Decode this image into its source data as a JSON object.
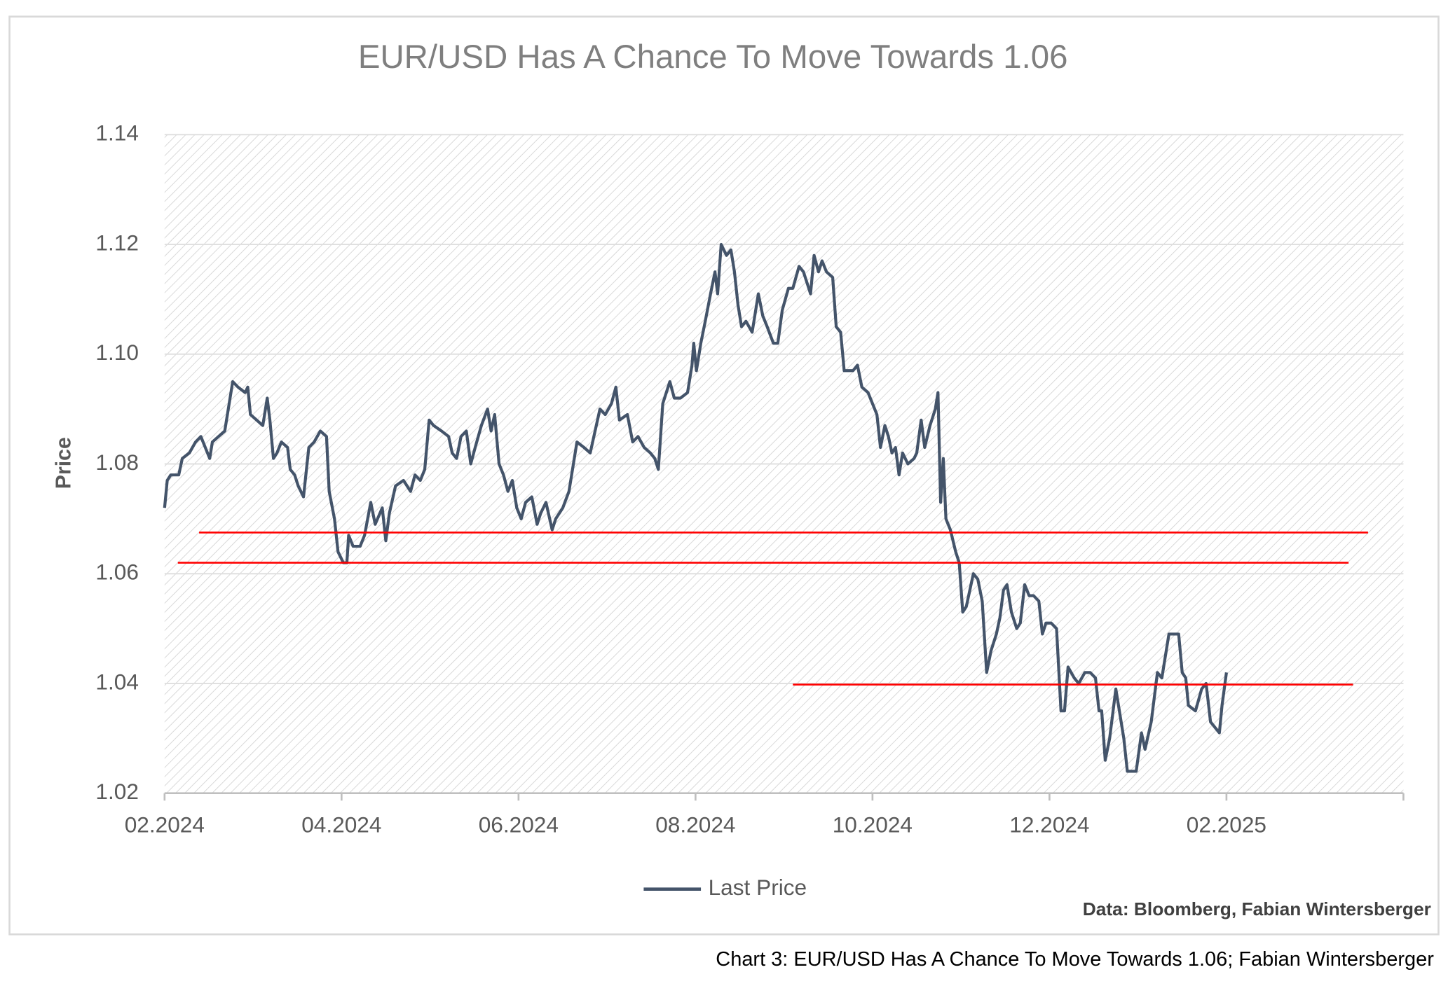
{
  "chart_data": {
    "type": "line",
    "title": "EUR/USD Has A Chance To Move Towards 1.06",
    "ylabel": "Price",
    "source": "Data: Bloomberg, Fabian Wintersberger",
    "caption": "Chart 3: EUR/USD Has A Chance To Move Towards 1.06; Fabian Wintersberger",
    "xlim": [
      0,
      14
    ],
    "xticks": [
      {
        "value": 0,
        "label": "02.2024"
      },
      {
        "value": 2,
        "label": "04.2024"
      },
      {
        "value": 4,
        "label": "06.2024"
      },
      {
        "value": 6,
        "label": "08.2024"
      },
      {
        "value": 8,
        "label": "10.2024"
      },
      {
        "value": 10,
        "label": "12.2024"
      },
      {
        "value": 12,
        "label": "02.2025"
      }
    ],
    "ylim": [
      1.02,
      1.14
    ],
    "yticks": [
      1.02,
      1.04,
      1.06,
      1.08,
      {
        "value": 1.1,
        "label": "1.10"
      },
      1.12,
      1.14
    ],
    "grid": true,
    "legend": "bottom",
    "x": [
      0,
      0.03,
      0.07,
      0.16,
      0.2,
      0.28,
      0.35,
      0.41,
      0.46,
      0.51,
      0.54,
      0.61,
      0.68,
      0.72,
      0.77,
      0.83,
      0.91,
      0.94,
      0.97,
      1.04,
      1.11,
      1.16,
      1.19,
      1.23,
      1.27,
      1.32,
      1.39,
      1.42,
      1.47,
      1.51,
      1.57,
      1.63,
      1.69,
      1.76,
      1.83,
      1.86,
      1.92,
      1.96,
      2.02,
      2.06,
      2.08,
      2.13,
      2.21,
      2.26,
      2.33,
      2.38,
      2.46,
      2.5,
      2.54,
      2.61,
      2.7,
      2.78,
      2.83,
      2.89,
      2.94,
      2.99,
      3.04,
      3.13,
      3.21,
      3.25,
      3.3,
      3.35,
      3.41,
      3.46,
      3.51,
      3.58,
      3.65,
      3.69,
      3.73,
      3.78,
      3.83,
      3.88,
      3.93,
      3.98,
      4.03,
      4.08,
      4.15,
      4.21,
      4.25,
      4.31,
      4.38,
      4.42,
      4.5,
      4.57,
      4.66,
      4.74,
      4.81,
      4.92,
      4.98,
      5.05,
      5.1,
      5.14,
      5.23,
      5.29,
      5.35,
      5.42,
      5.49,
      5.54,
      5.58,
      5.63,
      5.71,
      5.76,
      5.83,
      5.91,
      5.96,
      5.98,
      6.01,
      6.06,
      6.11,
      6.17,
      6.22,
      6.25,
      6.29,
      6.35,
      6.4,
      6.44,
      6.48,
      6.52,
      6.57,
      6.64,
      6.71,
      6.76,
      6.81,
      6.88,
      6.93,
      6.98,
      7.05,
      7.1,
      7.17,
      7.22,
      7.26,
      7.3,
      7.34,
      7.39,
      7.43,
      7.48,
      7.55,
      7.59,
      7.64,
      7.68,
      7.78,
      7.83,
      7.88,
      7.95,
      8.0,
      8.05,
      8.09,
      8.14,
      8.18,
      8.22,
      8.26,
      8.3,
      8.34,
      8.4,
      8.47,
      8.5,
      8.55,
      8.59,
      8.65,
      8.71,
      8.74,
      8.77,
      8.8,
      8.83,
      8.88,
      8.94,
      8.98,
      9.02,
      9.06,
      9.14,
      9.19,
      9.24,
      9.29,
      9.34,
      9.4,
      9.44,
      9.48,
      9.52,
      9.57,
      9.63,
      9.67,
      9.72,
      9.77,
      9.82,
      9.88,
      9.92,
      9.96,
      10.02,
      10.08,
      10.13,
      10.17,
      10.21,
      10.28,
      10.33,
      10.4,
      10.46,
      10.52,
      10.56,
      10.59,
      10.63,
      10.68,
      10.75,
      10.8,
      10.84,
      10.88,
      10.98,
      11.04,
      11.08,
      11.15,
      11.22,
      11.27,
      11.3,
      11.35,
      11.46,
      11.5,
      11.54,
      11.57,
      11.65,
      11.72,
      11.77,
      11.82,
      11.92,
      11.95,
      12
    ],
    "series": [
      {
        "name": "Last Price",
        "color": "#44546a",
        "values": [
          1.072,
          1.077,
          1.078,
          1.078,
          1.081,
          1.082,
          1.084,
          1.085,
          1.083,
          1.081,
          1.084,
          1.085,
          1.086,
          1.09,
          1.095,
          1.094,
          1.093,
          1.094,
          1.089,
          1.088,
          1.087,
          1.092,
          1.088,
          1.081,
          1.082,
          1.084,
          1.083,
          1.079,
          1.078,
          1.076,
          1.074,
          1.083,
          1.084,
          1.086,
          1.085,
          1.075,
          1.07,
          1.064,
          1.062,
          1.062,
          1.067,
          1.065,
          1.065,
          1.067,
          1.073,
          1.069,
          1.072,
          1.066,
          1.071,
          1.076,
          1.077,
          1.075,
          1.078,
          1.077,
          1.079,
          1.088,
          1.087,
          1.086,
          1.085,
          1.082,
          1.081,
          1.085,
          1.086,
          1.08,
          1.083,
          1.087,
          1.09,
          1.086,
          1.089,
          1.08,
          1.078,
          1.075,
          1.077,
          1.072,
          1.07,
          1.073,
          1.074,
          1.069,
          1.071,
          1.073,
          1.068,
          1.07,
          1.072,
          1.075,
          1.084,
          1.083,
          1.082,
          1.09,
          1.089,
          1.091,
          1.094,
          1.088,
          1.089,
          1.084,
          1.085,
          1.083,
          1.082,
          1.081,
          1.079,
          1.091,
          1.095,
          1.092,
          1.092,
          1.093,
          1.098,
          1.102,
          1.097,
          1.102,
          1.106,
          1.111,
          1.115,
          1.111,
          1.12,
          1.118,
          1.119,
          1.115,
          1.109,
          1.105,
          1.106,
          1.104,
          1.111,
          1.107,
          1.105,
          1.102,
          1.102,
          1.108,
          1.112,
          1.112,
          1.116,
          1.115,
          1.113,
          1.111,
          1.118,
          1.115,
          1.117,
          1.115,
          1.114,
          1.105,
          1.104,
          1.097,
          1.097,
          1.098,
          1.094,
          1.093,
          1.091,
          1.089,
          1.083,
          1.087,
          1.085,
          1.082,
          1.083,
          1.078,
          1.082,
          1.08,
          1.081,
          1.082,
          1.088,
          1.083,
          1.087,
          1.09,
          1.093,
          1.073,
          1.081,
          1.07,
          1.068,
          1.064,
          1.062,
          1.053,
          1.054,
          1.06,
          1.059,
          1.055,
          1.042,
          1.046,
          1.049,
          1.052,
          1.057,
          1.058,
          1.053,
          1.05,
          1.051,
          1.058,
          1.056,
          1.056,
          1.055,
          1.049,
          1.051,
          1.051,
          1.05,
          1.035,
          1.035,
          1.043,
          1.041,
          1.04,
          1.042,
          1.042,
          1.041,
          1.035,
          1.035,
          1.026,
          1.03,
          1.039,
          1.034,
          1.03,
          1.024,
          1.024,
          1.031,
          1.028,
          1.033,
          1.042,
          1.041,
          1.044,
          1.049,
          1.049,
          1.042,
          1.041,
          1.036,
          1.035,
          1.039,
          1.04,
          1.033,
          1.031,
          1.036,
          1.042
        ]
      }
    ],
    "reference_lines": [
      {
        "value": 1.0675,
        "x": [
          0.39,
          13.6
        ],
        "color": "#ff0000"
      },
      {
        "value": 1.062,
        "x": [
          0.15,
          13.38
        ],
        "color": "#ff0000"
      },
      {
        "value": 1.0398,
        "x": [
          7.1,
          13.43
        ],
        "color": "#ff0000"
      }
    ]
  }
}
